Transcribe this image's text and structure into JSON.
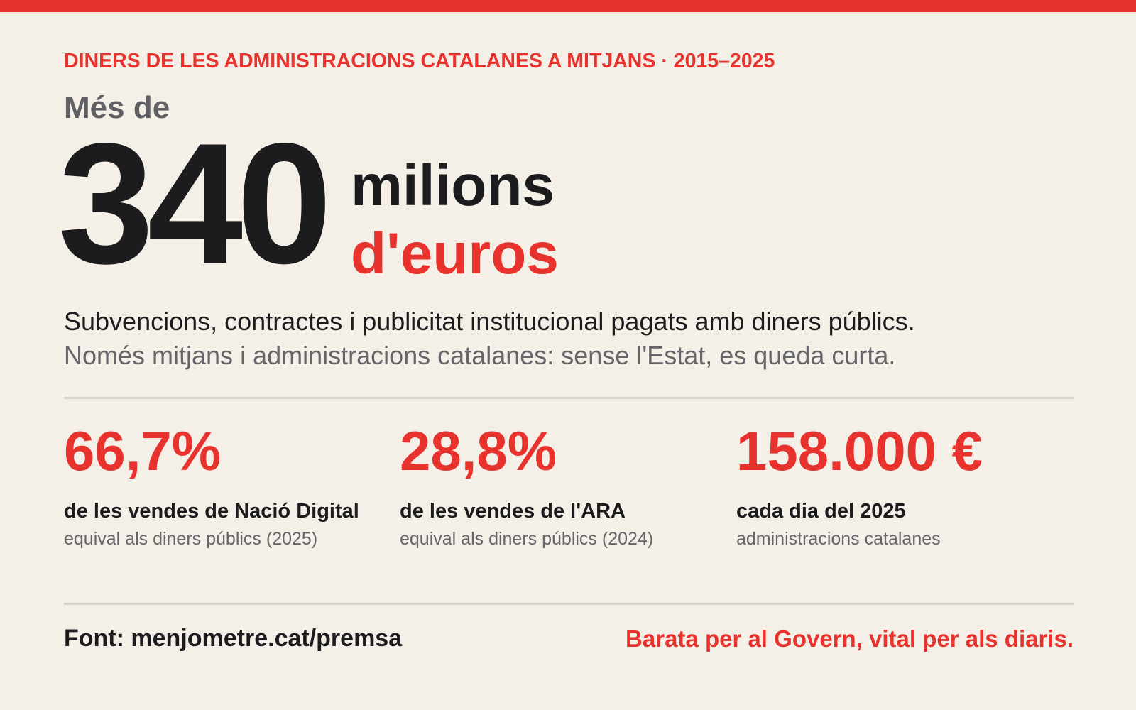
{
  "kicker": "DINERS DE LES ADMINISTRACIONS CATALANES A MITJANS · 2015–2025",
  "lead": "Més de",
  "headline": {
    "number": "340",
    "unit_line_1": "milions",
    "unit_line_2": "d'euros"
  },
  "description": {
    "line_1": "Subvencions, contractes i publicitat institucional pagats amb diners públics.",
    "line_2": "Només mitjans i administracions catalanes: sense l'Estat, es queda curta."
  },
  "stats": [
    {
      "value": "66,7%",
      "label": "de les vendes de Nació Digital",
      "note": "equival als diners públics (2025)"
    },
    {
      "value": "28,8%",
      "label": "de les vendes de l'ARA",
      "note": "equival als diners públics (2024)"
    },
    {
      "value": "158.000 €",
      "label": "cada dia del 2025",
      "note": "administracions catalanes"
    }
  ],
  "footer": {
    "source": "Font: menjometre.cat/premsa",
    "tagline": "Barata per al Govern, vital per als diaris."
  },
  "colors": {
    "accent": "#e8322d",
    "background": "#f4f0e8",
    "text": "#1c1c1e",
    "muted": "#66666a"
  }
}
